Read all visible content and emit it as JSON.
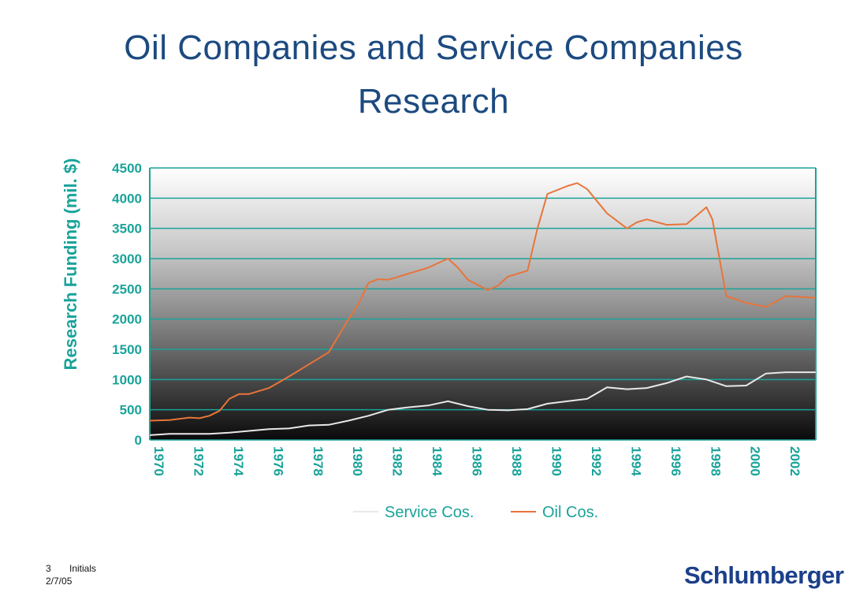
{
  "slide": {
    "title_line1": "Oil Companies and Service Companies",
    "title_line2": "Research",
    "footer_page": "3",
    "footer_initials": "Initials",
    "footer_date": "2/7/05",
    "logo_text": "Schlumberger"
  },
  "colors": {
    "title": "#1c4a80",
    "axis_text": "#1aa39a",
    "grid": "#1aa39a",
    "service_line": "#e8e8e8",
    "oil_line": "#e8743a",
    "logo": "#1b3f8b"
  },
  "chart_data": {
    "type": "line",
    "title": "",
    "xlabel": "",
    "ylabel": "Research Funding (mil. $)",
    "xlim": [
      1970,
      2003.5
    ],
    "ylim": [
      0,
      4500
    ],
    "yticks": [
      "0",
      "500",
      "1000",
      "1500",
      "2000",
      "2500",
      "3000",
      "3500",
      "4000",
      "4500"
    ],
    "xticks": [
      "1970",
      "1972",
      "1974",
      "1976",
      "1978",
      "1980",
      "1982",
      "1984",
      "1986",
      "1988",
      "1990",
      "1992",
      "1994",
      "1996",
      "1998",
      "2000",
      "2002"
    ],
    "grid": true,
    "legend_position": "bottom",
    "series": [
      {
        "name": "Service Cos.",
        "color": "#e8e8e8",
        "x": [
          1970,
          1971,
          1972,
          1973,
          1974,
          1975,
          1976,
          1977,
          1978,
          1979,
          1980,
          1981,
          1982,
          1983,
          1984,
          1985,
          1986,
          1987,
          1988,
          1989,
          1990,
          1991,
          1992,
          1993,
          1994,
          1995,
          1996,
          1997,
          1998,
          1999,
          2000,
          2001,
          2002,
          2003.5
        ],
        "values": [
          80,
          100,
          100,
          100,
          120,
          150,
          180,
          190,
          240,
          250,
          320,
          400,
          500,
          540,
          570,
          640,
          560,
          500,
          490,
          510,
          600,
          640,
          680,
          870,
          840,
          860,
          940,
          1050,
          1000,
          890,
          900,
          1100,
          1120,
          1120
        ]
      },
      {
        "name": "Oil Cos.",
        "color": "#e8743a",
        "x": [
          1970,
          1971,
          1972,
          1972.5,
          1973,
          1973.5,
          1974,
          1974.5,
          1975,
          1976,
          1977,
          1978,
          1979,
          1980,
          1980.5,
          1981,
          1981.5,
          1982,
          1983,
          1984,
          1985,
          1985.5,
          1986,
          1987,
          1987.5,
          1988,
          1989,
          1989.5,
          1990,
          1991,
          1991.5,
          1992,
          1993,
          1994,
          1994.5,
          1995,
          1996,
          1997,
          1998,
          1998.3,
          1999,
          2000,
          2001,
          2002,
          2003.5
        ],
        "values": [
          320,
          330,
          370,
          360,
          400,
          480,
          680,
          760,
          760,
          860,
          1050,
          1250,
          1450,
          2000,
          2250,
          2600,
          2660,
          2650,
          2750,
          2850,
          3000,
          2850,
          2650,
          2480,
          2550,
          2700,
          2800,
          3500,
          4070,
          4200,
          4250,
          4150,
          3750,
          3500,
          3600,
          3650,
          3560,
          3570,
          3850,
          3650,
          2380,
          2270,
          2200,
          2380,
          2350
        ]
      }
    ]
  }
}
